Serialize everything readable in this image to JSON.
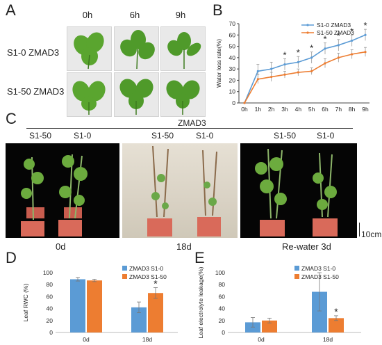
{
  "panels": {
    "A": {
      "letter": "A",
      "time_labels": [
        "0h",
        "6h",
        "9h"
      ],
      "row_labels": [
        "S1-0 ZMAD3",
        "S1-50 ZMAD3"
      ]
    },
    "B": {
      "letter": "B"
    },
    "C": {
      "letter": "C",
      "group_label": "ZMAD3",
      "top_labels": [
        "S1-50",
        "S1-0",
        "S1-50",
        "S1-0",
        "S1-50",
        "S1-0"
      ],
      "bottom_labels": [
        "0d",
        "18d",
        "Re-water 3d"
      ],
      "scale_label": "10cm"
    },
    "D": {
      "letter": "D"
    },
    "E": {
      "letter": "E"
    }
  },
  "chart_data": [
    {
      "id": "B",
      "type": "line",
      "xlabel": "",
      "ylabel": "Water loss rate(%)",
      "categories": [
        "0h",
        "1h",
        "2h",
        "3h",
        "4h",
        "5h",
        "6h",
        "7h",
        "8h",
        "9h"
      ],
      "ylim": [
        0,
        70
      ],
      "yticks": [
        0,
        10,
        20,
        30,
        40,
        50,
        60,
        70
      ],
      "legend_position": "top-right",
      "series": [
        {
          "name": "S1-0  ZMAD3",
          "color": "#5b9bd5",
          "values": [
            0,
            28,
            30,
            34,
            36,
            40,
            48,
            51,
            55,
            60
          ],
          "errors": [
            0,
            6,
            6,
            5,
            5,
            5,
            5,
            5,
            5,
            5
          ]
        },
        {
          "name": "S1-50 ZMAD3",
          "color": "#ed7d31",
          "values": [
            0,
            21,
            23,
            25,
            27,
            28,
            35,
            40,
            43,
            45
          ],
          "errors": [
            0,
            4,
            4,
            3,
            3,
            3,
            4,
            4,
            4,
            4
          ]
        }
      ],
      "significance": [
        "",
        "",
        "",
        "*",
        "*",
        "*",
        "*",
        "*",
        "*",
        "*"
      ]
    },
    {
      "id": "D",
      "type": "bar",
      "xlabel": "",
      "ylabel": "Leaf RWC (%)",
      "categories": [
        "0d",
        "18d"
      ],
      "ylim": [
        0,
        100
      ],
      "yticks": [
        0,
        20,
        40,
        60,
        80,
        100
      ],
      "legend_position": "top-right",
      "series": [
        {
          "name": "ZMAD3 S1-0",
          "color": "#5b9bd5",
          "values": [
            89,
            42
          ],
          "errors": [
            3,
            9
          ]
        },
        {
          "name": "ZMAD3 S1-50",
          "color": "#ed7d31",
          "values": [
            87,
            66
          ],
          "errors": [
            2,
            9
          ]
        }
      ],
      "significance": [
        "",
        "*"
      ]
    },
    {
      "id": "E",
      "type": "bar",
      "xlabel": "",
      "ylabel": "Leaf electrolyte leakage(%)",
      "categories": [
        "0d",
        "18d"
      ],
      "ylim": [
        0,
        100
      ],
      "yticks": [
        0,
        20,
        40,
        60,
        80,
        100
      ],
      "legend_position": "top-right",
      "series": [
        {
          "name": "ZMAD3 S1-0",
          "color": "#5b9bd5",
          "values": [
            17,
            68
          ],
          "errors": [
            8,
            32
          ]
        },
        {
          "name": "ZMAD3 S1-50",
          "color": "#ed7d31",
          "values": [
            20,
            24
          ],
          "errors": [
            4,
            4
          ]
        }
      ],
      "significance": [
        "",
        "*"
      ]
    }
  ]
}
